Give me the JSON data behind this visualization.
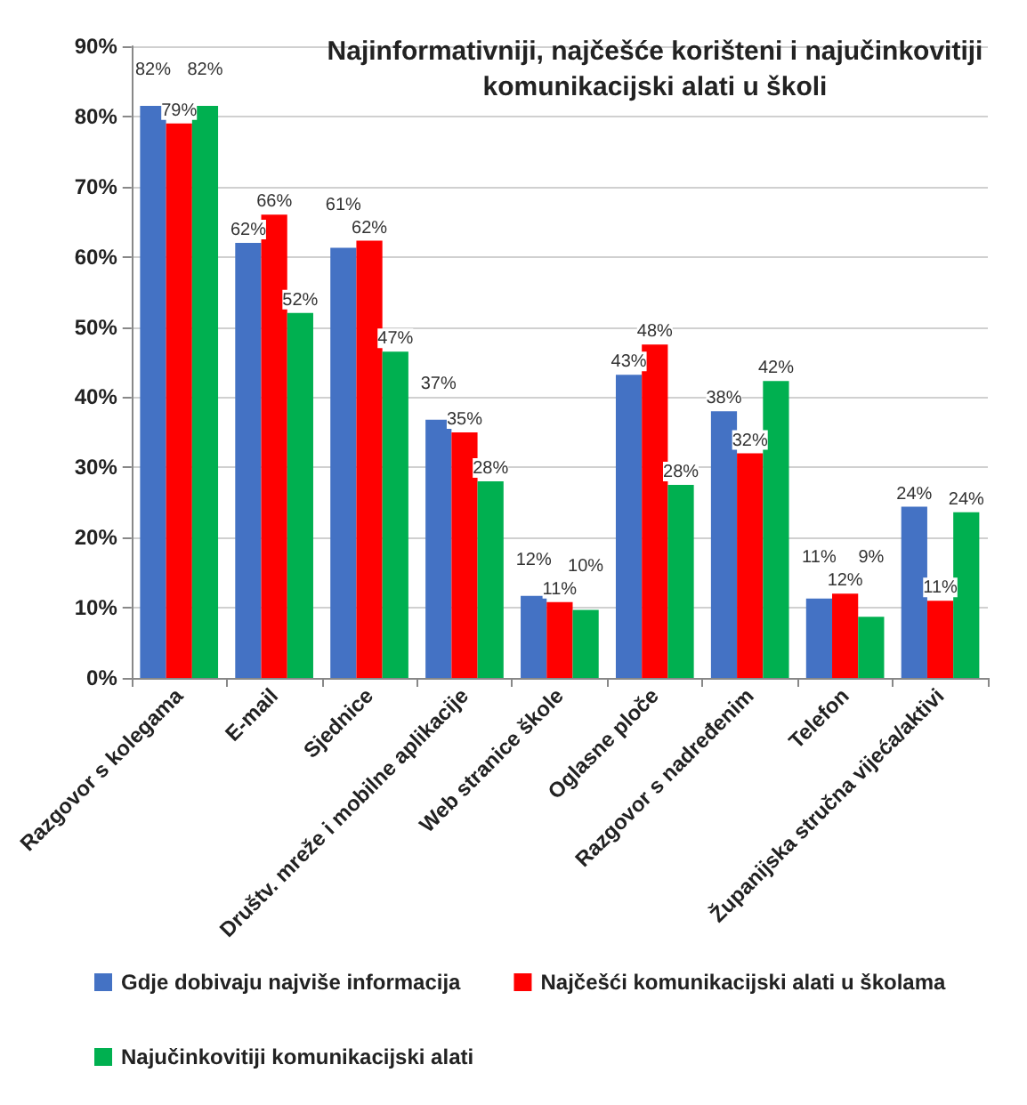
{
  "chart_data": {
    "type": "bar",
    "title": "Najinformativniji, najčešće korišteni i najučinkovitiji\nkomunikacijski alati u školi",
    "categories": [
      "Razgovor s kolegama",
      "E-mail",
      "Sjednice",
      "Društv. mreže i mobilne aplikacije",
      "Web stranice škole",
      "Oglasne ploče",
      "Razgovor s nadređenim",
      "Telefon",
      "Županijska stručna vijeća/aktivi"
    ],
    "series": [
      {
        "name": "Gdje dobivaju najviše informacija",
        "color": "#4472c4",
        "values": [
          81.5,
          62,
          61.3,
          36.8,
          11.7,
          43.2,
          38,
          11.3,
          24.4
        ],
        "value_labels": [
          "82%",
          "62%",
          "61%",
          "37%",
          "12%",
          "43%",
          "38%",
          "11%",
          "24%"
        ]
      },
      {
        "name": "Najčešći komunikacijski alati u školama",
        "color": "#ff0000",
        "values": [
          79,
          66,
          62.3,
          35,
          10.8,
          47.5,
          32,
          12,
          11
        ],
        "value_labels": [
          "79%",
          "66%",
          "62%",
          "35%",
          "11%",
          "48%",
          "32%",
          "12%",
          "11%"
        ]
      },
      {
        "name": "Najučinkovitiji komunikacijski alati",
        "color": "#00b050",
        "values": [
          81.5,
          52,
          46.5,
          28,
          9.7,
          27.5,
          42.3,
          8.7,
          23.6
        ],
        "value_labels": [
          "82%",
          "52%",
          "47%",
          "28%",
          "10%",
          "28%",
          "42%",
          "9%",
          "24%"
        ]
      }
    ],
    "ylim": [
      0,
      90
    ],
    "yticks": [
      {
        "value": 0,
        "label": "0%"
      },
      {
        "value": 10,
        "label": "10%"
      },
      {
        "value": 20,
        "label": "20%"
      },
      {
        "value": 30,
        "label": "30%"
      },
      {
        "value": 40,
        "label": "40%"
      },
      {
        "value": 50,
        "label": "50%"
      },
      {
        "value": 60,
        "label": "60%"
      },
      {
        "value": 70,
        "label": "70%"
      },
      {
        "value": 80,
        "label": "80%"
      },
      {
        "value": 90,
        "label": "90%"
      }
    ],
    "grid": "y",
    "legend": "bottom"
  }
}
